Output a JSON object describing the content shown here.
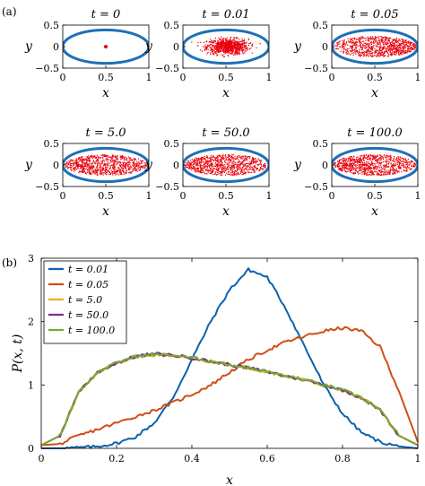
{
  "figure": {
    "label_a": "(a)",
    "label_b": "(b)"
  },
  "colors": {
    "ellipse": "#1f6fb5",
    "particles": "#e8000b",
    "axes": "#000000"
  },
  "chart_data": [
    {
      "type": "scatter",
      "panels": [
        {
          "t_label": "t = 0",
          "t": 0,
          "xlabel": "x",
          "ylabel": "y",
          "xlim": [
            0,
            1
          ],
          "ylim": [
            -0.5,
            0.5
          ],
          "xticks": [
            "0",
            "0.5",
            "1"
          ],
          "yticks": [
            "-0.5",
            "0",
            "0.5"
          ],
          "boundary": {
            "shape": "ellipse",
            "center": [
              0.5,
              0
            ],
            "semi_axes": [
              0.5,
              0.25
            ]
          },
          "particles": {
            "distribution": "single point",
            "point": [
              0.5,
              0
            ]
          }
        },
        {
          "t_label": "t = 0.01",
          "t": 0.01,
          "xlabel": "x",
          "ylabel": "y",
          "xlim": [
            0,
            1
          ],
          "ylim": [
            -0.5,
            0.5
          ],
          "xticks": [
            "0",
            "0.5",
            "1"
          ],
          "yticks": [
            "-0.5",
            "0",
            "0.5"
          ],
          "boundary": {
            "shape": "ellipse",
            "center": [
              0.5,
              0
            ],
            "semi_axes": [
              0.5,
              0.25
            ]
          },
          "particles": {
            "distribution": "concentrated near center",
            "center": [
              0.52,
              0
            ],
            "spread_x": 0.12,
            "spread_y": 0.09
          }
        },
        {
          "t_label": "t = 0.05",
          "t": 0.05,
          "xlabel": "x",
          "ylabel": "y",
          "xlim": [
            0,
            1
          ],
          "ylim": [
            -0.5,
            0.5
          ],
          "xticks": [
            "0",
            "0.5",
            "1"
          ],
          "yticks": [
            "-0.5",
            "0",
            "0.5"
          ],
          "boundary": {
            "shape": "ellipse",
            "center": [
              0.5,
              0
            ],
            "semi_axes": [
              0.5,
              0.25
            ]
          },
          "particles": {
            "distribution": "fills ellipse, denser to the right",
            "skew": "right"
          }
        },
        {
          "t_label": "t = 5.0",
          "t": 5.0,
          "xlabel": "x",
          "ylabel": "y",
          "xlim": [
            0,
            1
          ],
          "ylim": [
            -0.5,
            0.5
          ],
          "xticks": [
            "0",
            "0.5",
            "1"
          ],
          "yticks": [
            "-0.5",
            "0",
            "0.5"
          ],
          "boundary": {
            "shape": "ellipse",
            "center": [
              0.5,
              0
            ],
            "semi_axes": [
              0.5,
              0.25
            ]
          },
          "particles": {
            "distribution": "fills ellipse, slightly denser to the left",
            "skew": "left"
          }
        },
        {
          "t_label": "t = 50.0",
          "t": 50.0,
          "xlabel": "x",
          "ylabel": "y",
          "xlim": [
            0,
            1
          ],
          "ylim": [
            -0.5,
            0.5
          ],
          "xticks": [
            "0",
            "0.5",
            "1"
          ],
          "yticks": [
            "-0.5",
            "0",
            "0.5"
          ],
          "boundary": {
            "shape": "ellipse",
            "center": [
              0.5,
              0
            ],
            "semi_axes": [
              0.5,
              0.25
            ]
          },
          "particles": {
            "distribution": "fills ellipse, slightly denser to the left",
            "skew": "left"
          }
        },
        {
          "t_label": "t = 100.0",
          "t": 100.0,
          "xlabel": "x",
          "ylabel": "y",
          "xlim": [
            0,
            1
          ],
          "ylim": [
            -0.5,
            0.5
          ],
          "xticks": [
            "0",
            "0.5",
            "1"
          ],
          "yticks": [
            "-0.5",
            "0",
            "0.5"
          ],
          "boundary": {
            "shape": "ellipse",
            "center": [
              0.5,
              0
            ],
            "semi_axes": [
              0.5,
              0.25
            ]
          },
          "particles": {
            "distribution": "fills ellipse, slightly denser to the left",
            "skew": "left"
          }
        }
      ]
    },
    {
      "type": "line",
      "xlabel": "x",
      "ylabel": "P(x, t)",
      "xlim": [
        0,
        1
      ],
      "ylim": [
        0,
        3
      ],
      "xticks": [
        "0",
        "0.2",
        "0.4",
        "0.6",
        "0.8",
        "1"
      ],
      "yticks": [
        "0",
        "1",
        "2",
        "3"
      ],
      "legend_position": "top-left",
      "x": [
        0,
        0.05,
        0.1,
        0.15,
        0.2,
        0.25,
        0.3,
        0.35,
        0.4,
        0.45,
        0.5,
        0.55,
        0.6,
        0.65,
        0.7,
        0.75,
        0.8,
        0.85,
        0.9,
        0.95,
        1.0
      ],
      "series": [
        {
          "name": "t = 0.01",
          "color": "#0b62ad",
          "values": [
            0.0,
            0.0,
            0.01,
            0.03,
            0.08,
            0.18,
            0.4,
            0.8,
            1.4,
            2.0,
            2.5,
            2.82,
            2.7,
            2.2,
            1.6,
            1.0,
            0.55,
            0.25,
            0.1,
            0.03,
            0.0
          ]
        },
        {
          "name": "t = 0.05",
          "color": "#d04f14",
          "values": [
            0.05,
            0.07,
            0.2,
            0.3,
            0.4,
            0.5,
            0.6,
            0.72,
            0.85,
            1.0,
            1.2,
            1.4,
            1.55,
            1.68,
            1.77,
            1.85,
            1.9,
            1.85,
            1.6,
            0.9,
            0.1
          ]
        },
        {
          "name": "t = 5.0",
          "color": "#edb120",
          "values": [
            0.05,
            0.2,
            0.9,
            1.2,
            1.35,
            1.45,
            1.48,
            1.47,
            1.43,
            1.37,
            1.32,
            1.27,
            1.21,
            1.14,
            1.08,
            1.0,
            0.92,
            0.8,
            0.6,
            0.2,
            0.05
          ]
        },
        {
          "name": "t = 50.0",
          "color": "#7e2f8e",
          "values": [
            0.05,
            0.2,
            0.9,
            1.2,
            1.35,
            1.45,
            1.49,
            1.47,
            1.43,
            1.37,
            1.32,
            1.27,
            1.21,
            1.14,
            1.08,
            1.0,
            0.92,
            0.8,
            0.6,
            0.2,
            0.05
          ]
        },
        {
          "name": "t = 100.0",
          "color": "#77ac30",
          "values": [
            0.05,
            0.2,
            0.9,
            1.2,
            1.35,
            1.45,
            1.48,
            1.47,
            1.43,
            1.37,
            1.32,
            1.27,
            1.21,
            1.14,
            1.08,
            1.0,
            0.92,
            0.8,
            0.6,
            0.2,
            0.05
          ]
        }
      ]
    }
  ]
}
